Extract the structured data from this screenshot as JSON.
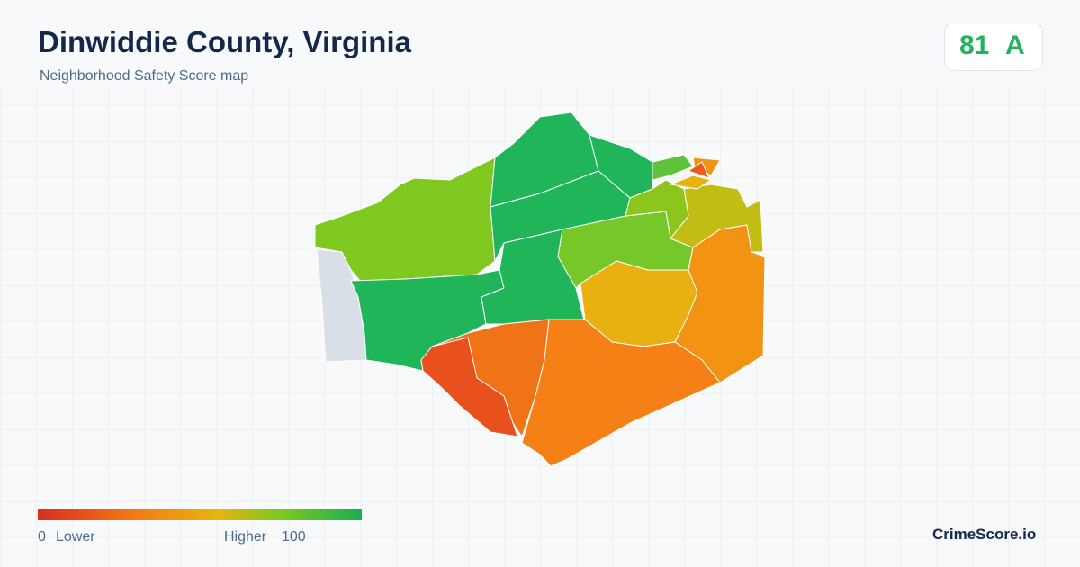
{
  "header": {
    "title": "Dinwiddie County, Virginia",
    "subtitle": "Neighborhood Safety Score map"
  },
  "score": {
    "value": "81",
    "grade": "A"
  },
  "legend": {
    "min": "0",
    "min_label": "Lower",
    "max_label": "Higher",
    "max": "100"
  },
  "brand": "CrimeScore.io"
}
